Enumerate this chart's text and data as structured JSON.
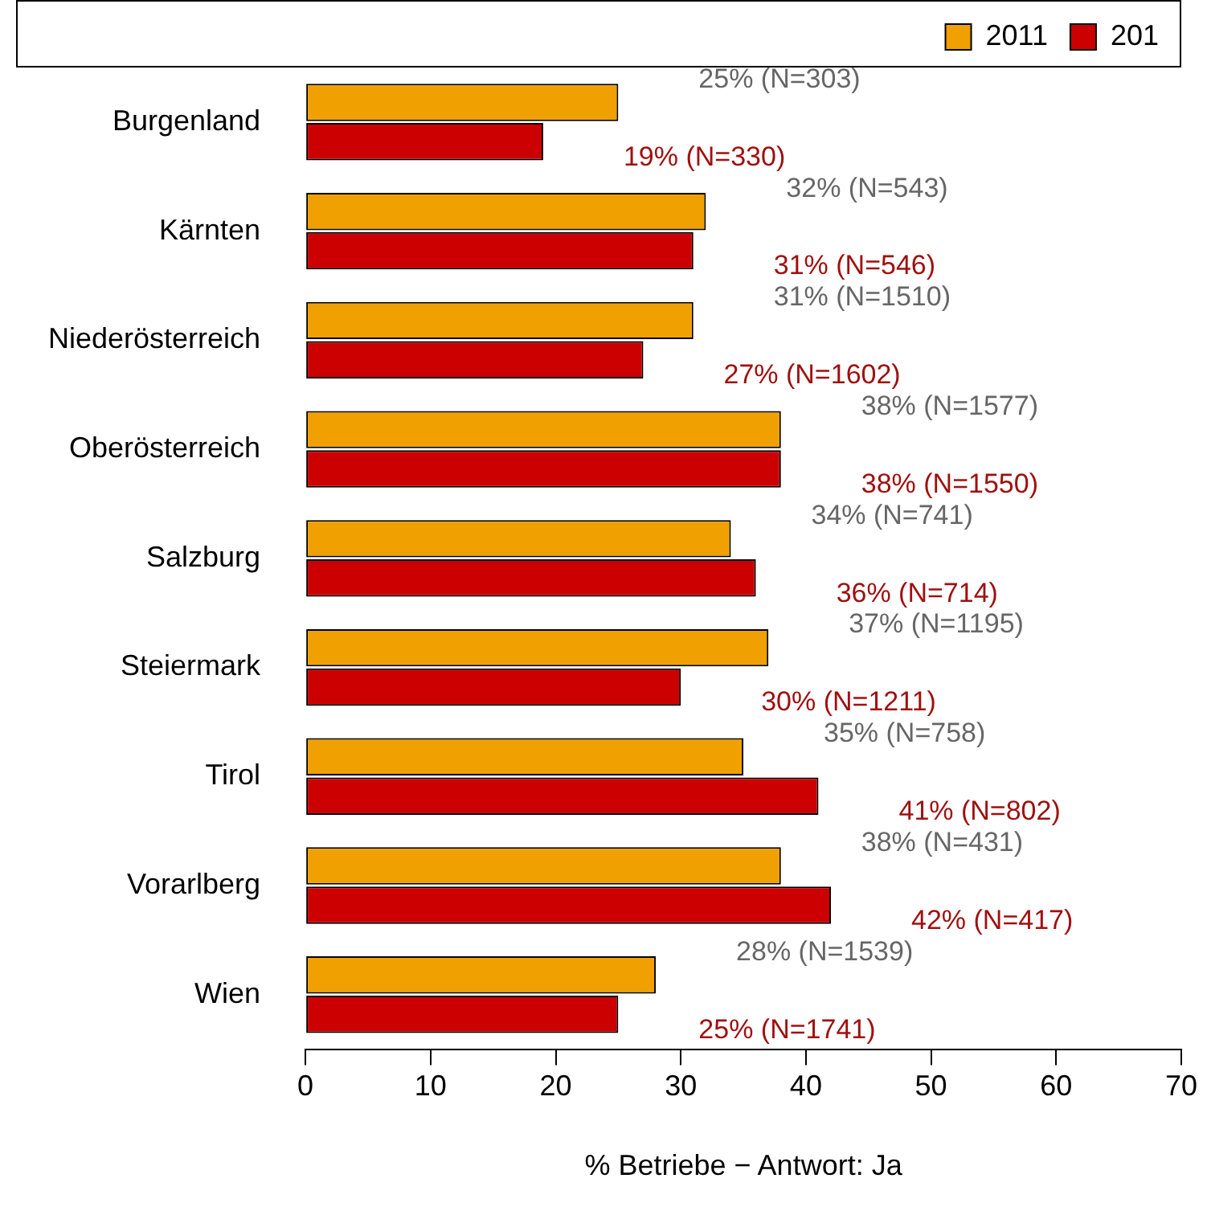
{
  "chart_data": {
    "type": "bar",
    "orientation": "horizontal",
    "xlabel": "% Betriebe − Antwort: Ja",
    "categories": [
      "Burgenland",
      "Kärnten",
      "Niederösterreich",
      "Oberösterreich",
      "Salzburg",
      "Steiermark",
      "Tirol",
      "Vorarlberg",
      "Wien"
    ],
    "series": [
      {
        "name": "2011",
        "color": "#f0a000",
        "values": [
          25,
          32,
          31,
          38,
          34,
          37,
          35,
          38,
          28
        ],
        "value_labels": [
          "25% (N=303)",
          "32% (N=543)",
          "31% (N=1510)",
          "38% (N=1577)",
          "34% (N=741)",
          "37% (N=1195)",
          "35% (N=758)",
          "38% (N=431)",
          "28% (N=1539)"
        ]
      },
      {
        "name": "201",
        "color": "#cc0000",
        "values": [
          19,
          31,
          27,
          38,
          36,
          30,
          41,
          42,
          25
        ],
        "value_labels": [
          "19% (N=330)",
          "31% (N=546)",
          "27% (N=1602)",
          "38% (N=1550)",
          "36% (N=714)",
          "30% (N=1211)",
          "41% (N=802)",
          "42% (N=417)",
          "25% (N=1741)"
        ]
      }
    ],
    "xlim": [
      0,
      70
    ],
    "xticks": [
      0,
      10,
      20,
      30,
      40,
      50,
      60,
      70
    ],
    "grid": false,
    "legend": "top right"
  }
}
